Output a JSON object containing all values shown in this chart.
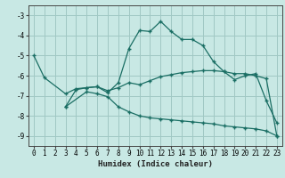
{
  "title": "",
  "xlabel": "Humidex (Indice chaleur)",
  "bg_color": "#c8e8e4",
  "grid_color": "#a0c8c4",
  "line_color": "#1a6e64",
  "xlim": [
    -0.5,
    23.5
  ],
  "ylim": [
    -9.5,
    -2.5
  ],
  "xticks": [
    0,
    1,
    2,
    3,
    4,
    5,
    6,
    7,
    8,
    9,
    10,
    11,
    12,
    13,
    14,
    15,
    16,
    17,
    18,
    19,
    20,
    21,
    22,
    23
  ],
  "yticks": [
    -9,
    -8,
    -7,
    -6,
    -5,
    -4,
    -3
  ],
  "line2_x": [
    0,
    1,
    3,
    4,
    5,
    6,
    7,
    8,
    9,
    10,
    11,
    12,
    13,
    14,
    15,
    16,
    17,
    18,
    19,
    20,
    21,
    22,
    23
  ],
  "line2_y": [
    -5.0,
    -6.1,
    -6.9,
    -6.65,
    -6.6,
    -6.55,
    -6.85,
    -6.35,
    -4.65,
    -3.75,
    -3.8,
    -3.3,
    -3.8,
    -4.2,
    -4.2,
    -4.5,
    -5.3,
    -5.8,
    -6.2,
    -6.0,
    -5.9,
    -7.25,
    -8.35
  ],
  "line3_x": [
    3,
    4,
    5,
    6,
    7,
    8,
    9,
    10,
    11,
    12,
    13,
    14,
    15,
    16,
    17,
    18,
    19,
    20,
    21,
    22,
    23
  ],
  "line3_y": [
    -7.55,
    -6.7,
    -6.6,
    -6.55,
    -6.75,
    -6.6,
    -6.35,
    -6.45,
    -6.25,
    -6.05,
    -5.95,
    -5.85,
    -5.8,
    -5.75,
    -5.75,
    -5.8,
    -5.9,
    -5.9,
    -6.0,
    -6.15,
    -9.0
  ],
  "line4_x": [
    3,
    5,
    6,
    7,
    8,
    9,
    10,
    11,
    12,
    13,
    14,
    15,
    16,
    17,
    18,
    19,
    20,
    21,
    22,
    23
  ],
  "line4_y": [
    -7.55,
    -6.8,
    -6.9,
    -7.05,
    -7.55,
    -7.8,
    -8.0,
    -8.1,
    -8.15,
    -8.2,
    -8.25,
    -8.3,
    -8.35,
    -8.4,
    -8.5,
    -8.55,
    -8.6,
    -8.65,
    -8.75,
    -9.0
  ]
}
